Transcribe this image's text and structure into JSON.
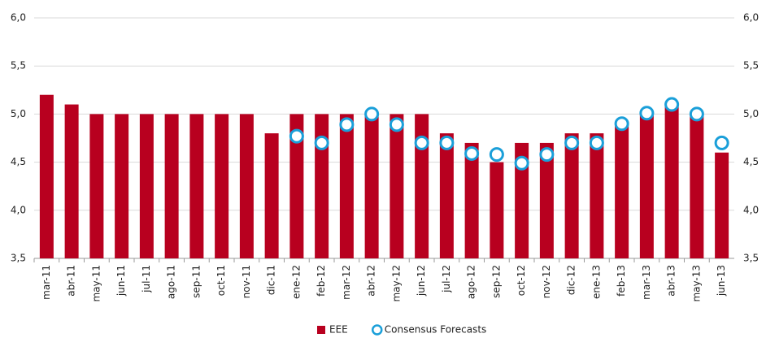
{
  "chart_data": {
    "type": "bar",
    "categories": [
      "mar-11",
      "abr-11",
      "may-11",
      "jun-11",
      "jul-11",
      "ago-11",
      "sep-11",
      "oct-11",
      "nov-11",
      "dic-11",
      "ene-12",
      "feb-12",
      "mar-12",
      "abr-12",
      "may-12",
      "jun-12",
      "jul-12",
      "ago-12",
      "sep-12",
      "oct-12",
      "nov-12",
      "dic-12",
      "ene-13",
      "feb-13",
      "mar-13",
      "abr-13",
      "may-13",
      "jun-13"
    ],
    "series": [
      {
        "name": "EEE",
        "type": "bar",
        "color": "#b8001f",
        "values": [
          5.2,
          5.1,
          5.0,
          5.0,
          5.0,
          5.0,
          5.0,
          5.0,
          5.0,
          4.8,
          5.0,
          5.0,
          5.0,
          5.0,
          5.0,
          5.0,
          4.8,
          4.7,
          4.5,
          4.7,
          4.7,
          4.8,
          4.8,
          4.9,
          5.0,
          5.1,
          5.0,
          4.6
        ]
      },
      {
        "name": "Consensus Forecasts",
        "type": "scatter",
        "color": "#1a9fd9",
        "values": [
          null,
          null,
          null,
          null,
          null,
          null,
          null,
          null,
          null,
          null,
          4.77,
          4.7,
          4.89,
          5.0,
          4.89,
          4.7,
          4.7,
          4.59,
          4.58,
          4.49,
          4.58,
          4.7,
          4.7,
          4.9,
          5.01,
          5.1,
          5.0,
          4.7
        ]
      }
    ],
    "ylim": [
      3.5,
      6.0
    ],
    "yticks": [
      {
        "value": 3.5,
        "label": "3,5"
      },
      {
        "value": 4.0,
        "label": "4,0"
      },
      {
        "value": 4.5,
        "label": "4,5"
      },
      {
        "value": 5.0,
        "label": "5,0"
      },
      {
        "value": 5.5,
        "label": "5,5"
      },
      {
        "value": 6.0,
        "label": "6,0"
      }
    ],
    "y2lim": [
      3.5,
      6.0
    ],
    "y2ticks": [
      {
        "value": 3.5,
        "label": "3,5"
      },
      {
        "value": 4.0,
        "label": "4,0"
      },
      {
        "value": 4.5,
        "label": "4,5"
      },
      {
        "value": 5.0,
        "label": "5,0"
      },
      {
        "value": 5.5,
        "label": "5,5"
      },
      {
        "value": 6.0,
        "label": "6,0"
      }
    ],
    "grid": true,
    "legend": "bottom"
  }
}
